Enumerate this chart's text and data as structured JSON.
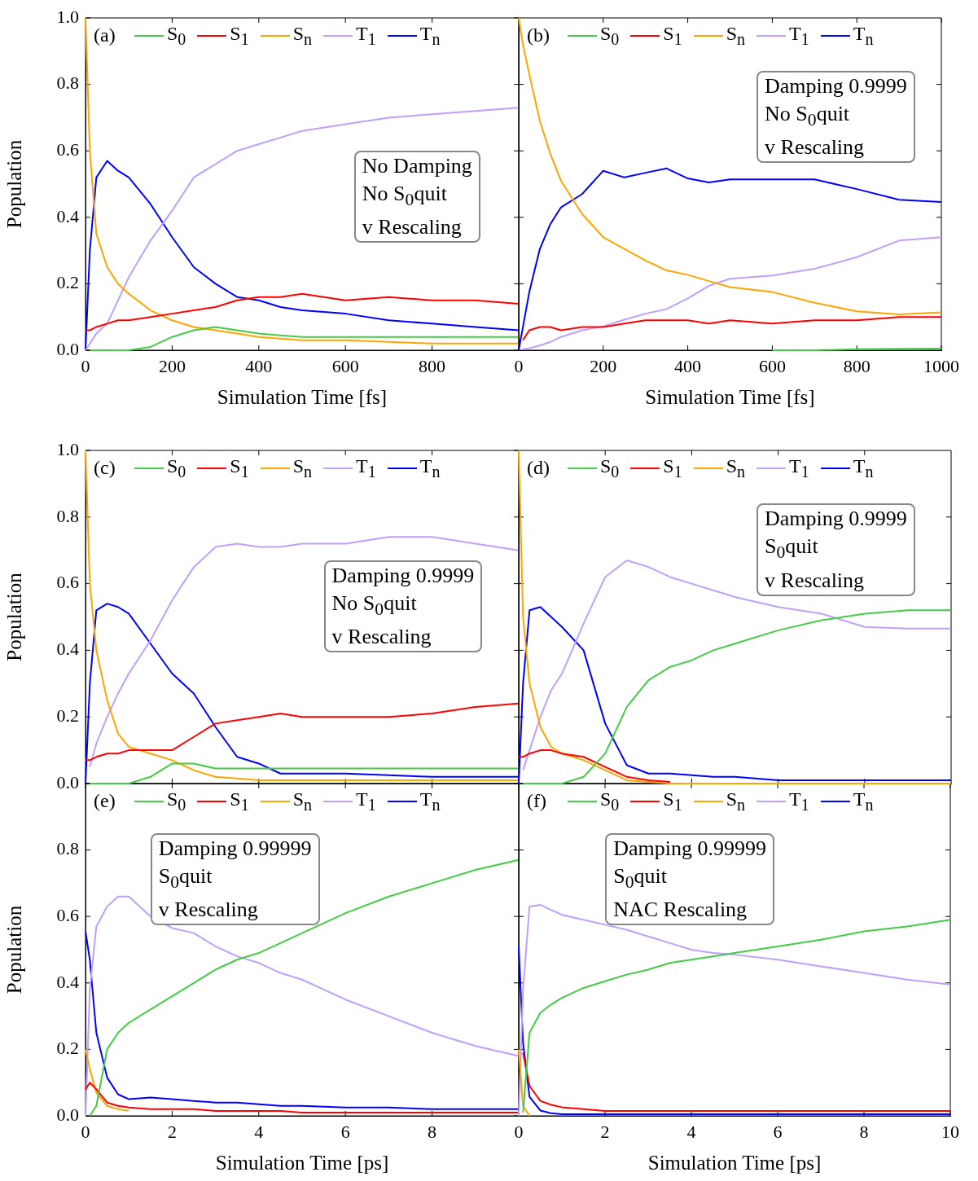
{
  "chart_data": [
    {
      "type": "line",
      "x": [
        0,
        10,
        25,
        50,
        75,
        100,
        150,
        200,
        250,
        300,
        350,
        400,
        450,
        500,
        600,
        700,
        800,
        900,
        1000
      ],
      "series": [
        {
          "name": "S$_{0}$",
          "color": "#44cc44",
          "values": [
            null,
            0,
            0,
            0,
            0,
            0,
            0.01,
            0.04,
            0.06,
            0.07,
            0.06,
            0.05,
            0.045,
            0.04,
            0.04,
            0.04,
            0.04,
            0.04,
            0.04
          ]
        },
        {
          "name": "S$_{1}$",
          "color": "#ff0000",
          "values": [
            0.06,
            0.06,
            0.07,
            0.08,
            0.09,
            0.09,
            0.1,
            0.11,
            0.12,
            0.13,
            0.15,
            0.16,
            0.16,
            0.17,
            0.15,
            0.16,
            0.15,
            0.15,
            0.14
          ]
        },
        {
          "name": "S$_{n}$",
          "color": "#ffa500",
          "values": [
            1,
            0.6,
            0.35,
            0.25,
            0.2,
            0.17,
            0.12,
            0.09,
            0.07,
            0.06,
            0.05,
            0.04,
            0.035,
            0.03,
            0.03,
            0.025,
            0.02,
            0.02,
            0.02
          ]
        },
        {
          "name": "T$_{1}$",
          "color": "#bf9fff",
          "values": [
            0,
            0.02,
            0.05,
            0.08,
            0.15,
            0.22,
            0.33,
            0.42,
            0.52,
            0.56,
            0.6,
            0.62,
            0.64,
            0.66,
            0.68,
            0.7,
            0.71,
            0.72,
            0.73
          ]
        },
        {
          "name": "T$_{n}$",
          "color": "#0000ff",
          "values": [
            0,
            0.3,
            0.52,
            0.57,
            0.54,
            0.52,
            0.44,
            0.34,
            0.25,
            0.2,
            0.16,
            0.15,
            0.13,
            0.12,
            0.11,
            0.09,
            0.08,
            0.07,
            0.06
          ]
        }
      ],
      "xlim": [
        0,
        1000
      ],
      "xticks": [
        0,
        200,
        400,
        600,
        800
      ],
      "ylim": [
        0,
        1
      ],
      "yticks": [
        {
          "value": 0,
          "label": "0.0"
        },
        {
          "value": 0.2,
          "label": "0.2"
        },
        {
          "value": 0.4,
          "label": "0.4"
        },
        {
          "value": 0.6,
          "label": "0.6"
        },
        {
          "value": 0.8,
          "label": "0.8"
        },
        {
          "value": 1,
          "label": "1.0"
        }
      ],
      "xlabel": "Simulation Time [fs]",
      "ylabel": "Population",
      "legend": "top",
      "annotations": [
        "(a)",
        "No Damping",
        "No S$_{0}$quit",
        "v Rescaling"
      ]
    },
    {
      "type": "line",
      "x": [
        0,
        10,
        25,
        50,
        75,
        100,
        150,
        200,
        250,
        300,
        350,
        400,
        450,
        500,
        600,
        700,
        800,
        900,
        1000
      ],
      "series": [
        {
          "name": "S$_{0}$",
          "color": "#44cc44",
          "values": [
            null,
            null,
            null,
            null,
            null,
            null,
            null,
            null,
            null,
            null,
            null,
            null,
            null,
            null,
            0,
            0,
            0.003,
            0.004,
            0.005
          ]
        },
        {
          "name": "S$_{1}$",
          "color": "#ff0000",
          "values": [
            null,
            0.03,
            0.06,
            0.07,
            0.07,
            0.06,
            0.07,
            0.07,
            0.08,
            0.09,
            0.09,
            0.09,
            0.08,
            0.09,
            0.08,
            0.09,
            0.09,
            0.1,
            0.1
          ]
        },
        {
          "name": "S$_{n}$",
          "color": "#ffa500",
          "values": [
            1,
            0.92,
            0.83,
            0.69,
            0.59,
            0.51,
            0.41,
            0.34,
            0.305,
            0.27,
            0.24,
            0.227,
            0.208,
            0.19,
            0.175,
            0.143,
            0.117,
            0.108,
            0.114
          ]
        },
        {
          "name": "T$_{1}$",
          "color": "#bf9fff",
          "values": [
            null,
            0.003,
            0.006,
            0.014,
            0.025,
            0.04,
            0.06,
            0.072,
            0.092,
            0.11,
            0.124,
            0.156,
            0.194,
            0.215,
            0.225,
            0.245,
            0.28,
            0.33,
            0.34
          ]
        },
        {
          "name": "T$_{n}$",
          "color": "#0000ff",
          "values": [
            0,
            0.07,
            0.175,
            0.305,
            0.38,
            0.43,
            0.47,
            0.54,
            0.52,
            0.534,
            0.547,
            0.517,
            0.505,
            0.514,
            0.514,
            0.514,
            0.485,
            0.453,
            0.446
          ]
        }
      ],
      "xlim": [
        0,
        1000
      ],
      "xticks": [
        0,
        200,
        400,
        600,
        800,
        1000
      ],
      "ylim": [
        0,
        1
      ],
      "yticks": [
        {
          "value": 0.2,
          "label": null
        },
        {
          "value": 0.4,
          "label": null
        },
        {
          "value": 0.6,
          "label": null
        },
        {
          "value": 0.8,
          "label": null
        }
      ],
      "tick_labels": "x",
      "xlabel": "Simulation Time [fs]",
      "legend": "top",
      "annotations": [
        "(b)",
        "Damping 0.9999",
        "No S$_{0}$quit",
        "v Rescaling"
      ]
    },
    {
      "type": "line",
      "x": [
        0,
        0.1,
        0.25,
        0.5,
        0.75,
        1,
        1.5,
        2,
        2.5,
        3,
        3.5,
        4,
        4.5,
        5,
        6,
        7,
        8,
        9,
        10
      ],
      "series": [
        {
          "name": "S$_{0}$",
          "color": "#44cc44",
          "values": [
            null,
            0,
            0,
            0,
            0,
            0,
            0.02,
            0.06,
            0.06,
            0.045,
            0.045,
            0.045,
            0.045,
            0.045,
            0.045,
            0.045,
            0.045,
            0.045,
            0.045
          ]
        },
        {
          "name": "S$_{1}$",
          "color": "#ff0000",
          "values": [
            0.07,
            0.07,
            0.08,
            0.09,
            0.09,
            0.1,
            0.1,
            0.1,
            0.14,
            0.18,
            0.19,
            0.2,
            0.21,
            0.2,
            0.2,
            0.2,
            0.21,
            0.23,
            0.24
          ]
        },
        {
          "name": "S$_{n}$",
          "color": "#ffa500",
          "values": [
            1,
            0.6,
            0.4,
            0.25,
            0.15,
            0.11,
            0.09,
            0.07,
            0.04,
            0.02,
            0.015,
            0.01,
            0.01,
            0.01,
            0.01,
            0.01,
            0.01,
            0.01,
            0.01
          ]
        },
        {
          "name": "T$_{1}$",
          "color": "#bf9fff",
          "values": [
            null,
            0.05,
            0.12,
            0.2,
            0.27,
            0.33,
            0.43,
            0.55,
            0.65,
            0.71,
            0.72,
            0.71,
            0.71,
            0.72,
            0.72,
            0.74,
            0.74,
            0.72,
            0.7
          ]
        },
        {
          "name": "T$_{n}$",
          "color": "#0000ff",
          "values": [
            0,
            0.3,
            0.52,
            0.54,
            0.53,
            0.51,
            0.42,
            0.33,
            0.27,
            0.17,
            0.08,
            0.06,
            0.03,
            0.03,
            0.03,
            0.025,
            0.02,
            0.02,
            0.02
          ]
        }
      ],
      "xlim": [
        0,
        10
      ],
      "xticks": [
        {
          "value": 2,
          "label": null
        },
        {
          "value": 4,
          "label": null
        },
        {
          "value": 6,
          "label": null
        },
        {
          "value": 8,
          "label": null
        }
      ],
      "ylim": [
        0,
        1
      ],
      "yticks": [
        {
          "value": 0,
          "label": "0.0"
        },
        {
          "value": 0.2,
          "label": "0.2"
        },
        {
          "value": 0.4,
          "label": "0.4"
        },
        {
          "value": 0.6,
          "label": "0.6"
        },
        {
          "value": 0.8,
          "label": "0.8"
        },
        {
          "value": 1,
          "label": "1.0"
        }
      ],
      "tick_labels": "y",
      "ylabel": "Population",
      "legend": "top",
      "annotations": [
        "(c)",
        "Damping 0.9999",
        "No S$_{0}$quit",
        "v Rescaling"
      ]
    },
    {
      "type": "line",
      "x": [
        0,
        0.1,
        0.25,
        0.5,
        0.75,
        1,
        1.5,
        2,
        2.5,
        3,
        3.5,
        4,
        4.5,
        5,
        6,
        7,
        8,
        9,
        10
      ],
      "series": [
        {
          "name": "S$_{0}$",
          "color": "#44cc44",
          "values": [
            null,
            0,
            0,
            0,
            0,
            0,
            0.02,
            0.09,
            0.23,
            0.31,
            0.35,
            0.37,
            0.4,
            0.42,
            0.46,
            0.49,
            0.51,
            0.52,
            0.52
          ]
        },
        {
          "name": "S$_{1}$",
          "color": "#ff0000",
          "values": [
            0.08,
            0.08,
            0.09,
            0.1,
            0.1,
            0.09,
            0.08,
            0.05,
            0.02,
            0.01,
            0.005,
            null,
            null,
            null,
            null,
            null,
            null,
            null,
            null
          ]
        },
        {
          "name": "S$_{n}$",
          "color": "#ffa500",
          "values": [
            1,
            0.5,
            0.3,
            0.17,
            0.11,
            0.09,
            0.07,
            0.04,
            0.01,
            0.005,
            0,
            0,
            0,
            0,
            0,
            0,
            0,
            0,
            0
          ]
        },
        {
          "name": "T$_{1}$",
          "color": "#bf9fff",
          "values": [
            null,
            0.04,
            0.1,
            0.2,
            0.28,
            0.33,
            0.48,
            0.62,
            0.67,
            0.65,
            0.62,
            0.6,
            0.58,
            0.56,
            0.53,
            0.51,
            0.47,
            0.465,
            0.465
          ]
        },
        {
          "name": "T$_{n}$",
          "color": "#0000ff",
          "values": [
            0,
            0.3,
            0.52,
            0.53,
            0.5,
            0.47,
            0.4,
            0.18,
            0.055,
            0.03,
            0.03,
            0.025,
            0.02,
            0.02,
            0.01,
            0.01,
            0.01,
            0.01,
            0.01
          ]
        }
      ],
      "xlim": [
        0,
        10
      ],
      "xticks": [
        {
          "value": 2,
          "label": null
        },
        {
          "value": 4,
          "label": null
        },
        {
          "value": 6,
          "label": null
        },
        {
          "value": 8,
          "label": null
        }
      ],
      "ylim": [
        0,
        1
      ],
      "yticks": [
        {
          "value": 0.2,
          "label": null
        },
        {
          "value": 0.4,
          "label": null
        },
        {
          "value": 0.6,
          "label": null
        },
        {
          "value": 0.8,
          "label": null
        }
      ],
      "tick_labels": false,
      "legend": "top",
      "annotations": [
        "(d)",
        "Damping 0.9999",
        "S$_{0}$quit",
        "v Rescaling"
      ]
    },
    {
      "type": "line",
      "x": [
        0,
        0.1,
        0.25,
        0.5,
        0.75,
        1,
        1.5,
        2,
        2.5,
        3,
        3.5,
        4,
        4.5,
        5,
        6,
        7,
        8,
        9,
        10
      ],
      "series": [
        {
          "name": "S$_{0}$",
          "color": "#44cc44",
          "values": [
            null,
            0,
            0.03,
            0.2,
            0.25,
            0.28,
            0.32,
            0.36,
            0.4,
            0.44,
            0.47,
            0.49,
            0.52,
            0.55,
            0.61,
            0.66,
            0.7,
            0.74,
            0.77
          ]
        },
        {
          "name": "S$_{1}$",
          "color": "#ff0000",
          "values": [
            0.08,
            0.1,
            0.08,
            0.04,
            0.03,
            0.025,
            0.02,
            0.02,
            0.02,
            0.015,
            0.015,
            0.015,
            0.015,
            0.01,
            0.01,
            0.01,
            0.01,
            0.01,
            0.01
          ]
        },
        {
          "name": "S$_{n}$",
          "color": "#ffa500",
          "values": [
            0.2,
            0.14,
            0.07,
            0.03,
            0.02,
            0.015,
            null,
            null,
            null,
            null,
            null,
            null,
            null,
            null,
            null,
            null,
            null,
            null,
            null
          ]
        },
        {
          "name": "T$_{1}$",
          "color": "#bf9fff",
          "values": [
            0,
            0.38,
            0.57,
            0.63,
            0.66,
            0.66,
            0.6,
            0.565,
            0.55,
            0.51,
            0.48,
            0.46,
            0.43,
            0.41,
            0.35,
            0.3,
            0.25,
            0.21,
            0.18
          ]
        },
        {
          "name": "T$_{n}$",
          "color": "#0000ff",
          "values": [
            0.555,
            0.47,
            0.25,
            0.115,
            0.065,
            0.05,
            0.055,
            0.05,
            0.045,
            0.04,
            0.04,
            0.035,
            0.03,
            0.03,
            0.025,
            0.025,
            0.02,
            0.02,
            0.02
          ]
        }
      ],
      "xlim": [
        0,
        10
      ],
      "xticks": [
        0,
        2,
        4,
        6,
        8
      ],
      "ylim": [
        0,
        1
      ],
      "yticks": [
        {
          "value": 0,
          "label": "0.0"
        },
        {
          "value": 0.2,
          "label": "0.2"
        },
        {
          "value": 0.4,
          "label": "0.4"
        },
        {
          "value": 0.6,
          "label": "0.6"
        },
        {
          "value": 0.8,
          "label": "0.8"
        }
      ],
      "xlabel": "Simulation Time [ps]",
      "ylabel": "Population",
      "legend": "top",
      "annotations": [
        "(e)",
        "Damping 0.99999",
        "S$_{0}$quit",
        "v Rescaling"
      ]
    },
    {
      "type": "line",
      "x": [
        0,
        0.1,
        0.25,
        0.5,
        0.75,
        1,
        1.5,
        2,
        2.5,
        3,
        3.5,
        4,
        4.5,
        5,
        6,
        7,
        8,
        9,
        10
      ],
      "series": [
        {
          "name": "S$_{0}$",
          "color": "#44cc44",
          "values": [
            null,
            0.01,
            0.25,
            0.31,
            0.335,
            0.355,
            0.385,
            0.405,
            0.425,
            0.44,
            0.46,
            0.47,
            0.48,
            0.49,
            0.51,
            0.53,
            0.555,
            0.57,
            0.59
          ]
        },
        {
          "name": "S$_{1}$",
          "color": "#ff0000",
          "values": [
            null,
            0.19,
            0.09,
            0.045,
            0.033,
            0.026,
            0.02,
            0.015,
            0.015,
            0.015,
            0.015,
            0.015,
            0.015,
            0.015,
            0.015,
            0.015,
            0.015,
            0.015,
            0.015
          ]
        },
        {
          "name": "S$_{n}$",
          "color": "#ffa500",
          "values": [
            0.2,
            0.03,
            0,
            null,
            null,
            null,
            null,
            null,
            null,
            null,
            null,
            null,
            null,
            null,
            null,
            null,
            null,
            null,
            null
          ]
        },
        {
          "name": "T$_{1}$",
          "color": "#bf9fff",
          "values": [
            0,
            0.38,
            0.63,
            0.635,
            0.62,
            0.605,
            0.59,
            0.575,
            0.56,
            0.54,
            0.52,
            0.5,
            0.49,
            0.485,
            0.47,
            0.45,
            0.43,
            0.41,
            0.395
          ]
        },
        {
          "name": "T$_{n}$",
          "color": "#0000ff",
          "values": [
            0.51,
            0.22,
            0.057,
            0.016,
            0.008,
            0.005,
            0.005,
            0.005,
            0.005,
            0.005,
            0.005,
            0.005,
            0.005,
            0.005,
            0.005,
            0.005,
            0.005,
            0.005,
            0.005
          ]
        }
      ],
      "xlim": [
        0,
        10
      ],
      "xticks": [
        0,
        2,
        4,
        6,
        8,
        10
      ],
      "ylim": [
        0,
        1
      ],
      "yticks": [
        {
          "value": 0.2,
          "label": null
        },
        {
          "value": 0.4,
          "label": null
        },
        {
          "value": 0.6,
          "label": null
        },
        {
          "value": 0.8,
          "label": null
        }
      ],
      "tick_labels": "x",
      "xlabel": "Simulation Time [ps]",
      "legend": "top",
      "annotations": [
        "(f)",
        "Damping 0.99999",
        "S$_{0}$quit",
        "NAC Rescaling"
      ]
    }
  ]
}
